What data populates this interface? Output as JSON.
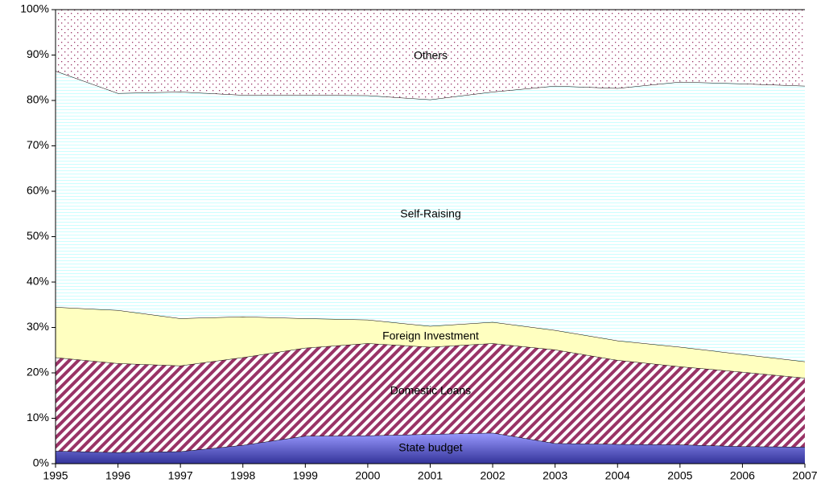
{
  "chart_data": {
    "type": "stacked_area",
    "x": [
      1995,
      1996,
      1997,
      1998,
      1999,
      2000,
      2001,
      2002,
      2003,
      2004,
      2005,
      2006,
      2007
    ],
    "xlim": [
      1995,
      2007
    ],
    "xticks": [
      1995,
      1996,
      1997,
      1998,
      1999,
      2000,
      2001,
      2002,
      2003,
      2004,
      2005,
      2006,
      2007
    ],
    "ylim": [
      0,
      100
    ],
    "yticks": [
      {
        "value": 0,
        "label": "0%"
      },
      {
        "value": 10,
        "label": "10%"
      },
      {
        "value": 20,
        "label": "20%"
      },
      {
        "value": 30,
        "label": "30%"
      },
      {
        "value": 40,
        "label": "40%"
      },
      {
        "value": 50,
        "label": "50%"
      },
      {
        "value": 60,
        "label": "60%"
      },
      {
        "value": 70,
        "label": "70%"
      },
      {
        "value": 80,
        "label": "80%"
      },
      {
        "value": 90,
        "label": "90%"
      },
      {
        "value": 100,
        "label": "100%"
      }
    ],
    "series": [
      {
        "name": "State budget",
        "color": "#9999ff",
        "pattern": "gradient",
        "values": [
          2.8,
          2.5,
          2.7,
          4.1,
          6.1,
          6.2,
          6.5,
          6.8,
          4.5,
          4.3,
          4.2,
          3.8,
          3.7
        ]
      },
      {
        "name": "Domestic Loans",
        "color": "#993366",
        "pattern": "diagonal",
        "values": [
          20.6,
          19.6,
          18.9,
          19.3,
          19.4,
          20.3,
          19.2,
          19.7,
          20.6,
          18.5,
          17.2,
          16.4,
          15.2
        ]
      },
      {
        "name": "Foreign Investment",
        "color": "#ffffc0",
        "pattern": "solid",
        "values": [
          11.1,
          11.7,
          10.4,
          9.0,
          6.5,
          5.2,
          4.6,
          4.7,
          4.3,
          4.3,
          4.3,
          3.9,
          3.6
        ]
      },
      {
        "name": "Self-Raising",
        "color": "#ccffff",
        "pattern": "hlines",
        "values": [
          52.0,
          47.8,
          49.9,
          48.8,
          49.2,
          49.4,
          49.9,
          50.7,
          53.8,
          55.6,
          58.4,
          59.6,
          60.7
        ]
      },
      {
        "name": "Others",
        "color": "#993366",
        "pattern": "dots",
        "values": [
          13.5,
          18.4,
          18.1,
          18.8,
          18.8,
          18.9,
          19.8,
          18.1,
          16.8,
          17.3,
          15.9,
          16.3,
          16.8
        ]
      }
    ]
  }
}
